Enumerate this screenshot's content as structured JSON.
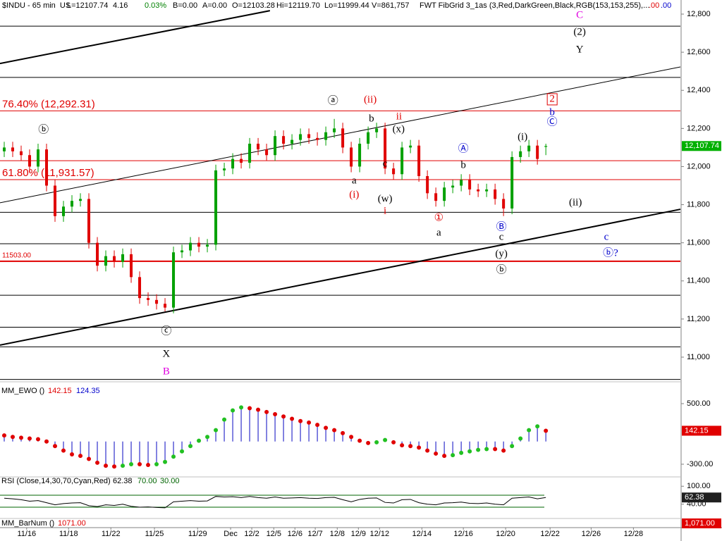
{
  "chart_data": [
    {
      "type": "candlestick",
      "header": [
        "$INDU - 65 min  US",
        "L=12107.74",
        "4.16",
        "0.03%",
        "B=0.00",
        "A=0.00",
        "O=12103.28",
        "Hi=12119.70",
        "Lo=11999.44",
        "V=861,757",
        "FWT FibGrid 3_1as (3,Red,DarkGreen,Black,RGB(153,153,255),...",
        ".00",
        ".00"
      ],
      "header_colors": [
        "#000000",
        "#000000",
        "#000000",
        "#008000",
        "#000000",
        "#000000",
        "#000000",
        "#000000",
        "#000000",
        "#000000",
        "#000000",
        "#e00000",
        "#0000cc"
      ],
      "x": [
        1,
        3,
        5,
        7,
        9,
        11,
        13,
        15,
        17,
        19,
        21,
        23,
        25,
        27,
        29,
        31,
        33,
        35,
        37,
        39,
        41,
        43,
        45,
        47,
        49,
        51,
        53,
        55,
        57,
        59,
        61,
        63,
        65,
        67,
        69,
        71,
        73,
        75,
        77,
        79,
        81,
        83,
        85,
        87,
        89,
        91,
        93,
        95,
        97,
        99,
        101,
        103,
        105,
        107,
        109,
        111,
        113,
        115,
        117,
        119,
        121,
        123,
        125,
        127,
        129
      ],
      "open": [
        12080,
        12100,
        12080,
        12060,
        12000,
        12090,
        11900,
        11740,
        11790,
        11820,
        11830,
        11600,
        11480,
        11530,
        11500,
        11540,
        11420,
        11310,
        11300,
        11280,
        11260,
        11550,
        11560,
        11600,
        11580,
        11590,
        11980,
        11990,
        12040,
        12020,
        12120,
        12090,
        12060,
        12160,
        12120,
        12140,
        12170,
        12150,
        12140,
        12180,
        12200,
        12100,
        12000,
        12120,
        12180,
        12200,
        11990,
        11960,
        12100,
        12110,
        11950,
        11860,
        11820,
        11890,
        11900,
        11930,
        11880,
        11870,
        11880,
        11830,
        11780,
        12050,
        12080,
        12110,
        12103.28
      ],
      "high": [
        12130,
        12130,
        12110,
        12090,
        12120,
        12120,
        11930,
        11820,
        11850,
        11860,
        11860,
        11630,
        11560,
        11560,
        11570,
        11570,
        11450,
        11340,
        11330,
        11310,
        11580,
        11590,
        11630,
        11630,
        11620,
        12010,
        12020,
        12070,
        12070,
        12150,
        12150,
        12120,
        12190,
        12190,
        12170,
        12200,
        12200,
        12180,
        12210,
        12250,
        12230,
        12130,
        12150,
        12210,
        12230,
        12230,
        12020,
        12130,
        12140,
        12140,
        11980,
        11890,
        11920,
        11930,
        11960,
        11960,
        11910,
        11910,
        11910,
        11860,
        12080,
        12110,
        12140,
        12140,
        12119.7
      ],
      "low": [
        12050,
        12050,
        12030,
        11970,
        11970,
        11870,
        11710,
        11710,
        11760,
        11790,
        11570,
        11450,
        11450,
        11470,
        11470,
        11390,
        11280,
        11270,
        11250,
        11240,
        11230,
        11520,
        11530,
        11550,
        11550,
        11560,
        11950,
        11960,
        11990,
        11990,
        12060,
        12030,
        12030,
        12090,
        12090,
        12110,
        12120,
        12110,
        12110,
        12150,
        12070,
        11970,
        11970,
        12090,
        12150,
        11960,
        11930,
        11930,
        12070,
        11920,
        11830,
        11790,
        11790,
        11860,
        11870,
        11850,
        11840,
        11840,
        11800,
        11740,
        11750,
        12020,
        12050,
        12010,
        12060
      ],
      "close": [
        12100,
        12080,
        12060,
        12000,
        12090,
        11900,
        11740,
        11790,
        11820,
        11830,
        11600,
        11480,
        11530,
        11500,
        11540,
        11420,
        11310,
        11300,
        11280,
        11260,
        11550,
        11560,
        11600,
        11580,
        11590,
        11980,
        11990,
        12040,
        12020,
        12120,
        12090,
        12060,
        12160,
        12120,
        12140,
        12170,
        12150,
        12140,
        12180,
        12200,
        12100,
        12000,
        12120,
        12180,
        12200,
        11990,
        11960,
        12100,
        12110,
        11950,
        11860,
        11820,
        11890,
        11900,
        11930,
        11880,
        11870,
        11880,
        11830,
        11780,
        12050,
        12080,
        12110,
        12040,
        12107.74
      ],
      "up_color": "#00a000",
      "down_color": "#e00000",
      "last_label": "12,107.74",
      "last_color": "#00b000",
      "xlim": [
        0,
        160.8
      ],
      "xticks": [
        {
          "value": 6.3,
          "label": "11/16"
        },
        {
          "value": 16.2,
          "label": "11/18"
        },
        {
          "value": 26.2,
          "label": "11/22"
        },
        {
          "value": 36.5,
          "label": "11/25"
        },
        {
          "value": 46.7,
          "label": "11/29"
        },
        {
          "value": 54.5,
          "label": "Dec"
        },
        {
          "value": 59.5,
          "label": "12/2"
        },
        {
          "value": 64.7,
          "label": "12/5"
        },
        {
          "value": 69.7,
          "label": "12/6"
        },
        {
          "value": 74.5,
          "label": "12/7"
        },
        {
          "value": 79.7,
          "label": "12/8"
        },
        {
          "value": 84.7,
          "label": "12/9"
        },
        {
          "value": 89.7,
          "label": "12/12"
        },
        {
          "value": 99.7,
          "label": "12/14"
        },
        {
          "value": 109.5,
          "label": "12/16"
        },
        {
          "value": 119.5,
          "label": "12/20"
        },
        {
          "value": 130,
          "label": "12/22"
        },
        {
          "value": 139.7,
          "label": "12/26"
        },
        {
          "value": 149.7,
          "label": "12/28"
        }
      ],
      "ylim": [
        10878,
        12874
      ],
      "yticks": [
        {
          "value": 11000,
          "label": "11,000"
        },
        {
          "value": 11200,
          "label": "11,200"
        },
        {
          "value": 11400,
          "label": "11,400"
        },
        {
          "value": 11600,
          "label": "11,600"
        },
        {
          "value": 11800,
          "label": "11,800"
        },
        {
          "value": 12000,
          "label": "12,000"
        },
        {
          "value": 12200,
          "label": "12,200"
        },
        {
          "value": 12400,
          "label": "12,400"
        },
        {
          "value": 12600,
          "label": "12,600"
        },
        {
          "value": 12800,
          "label": "12,800"
        }
      ],
      "hlines": [
        {
          "value": 12737,
          "color": "#000000",
          "width": 1
        },
        {
          "value": 12468,
          "color": "#000000",
          "width": 1
        },
        {
          "value": 12292.31,
          "color": "#e00000",
          "width": 1,
          "label": "76.40% (12,292.31)"
        },
        {
          "value": 12031,
          "color": "#e00000",
          "width": 1
        },
        {
          "value": 11931.57,
          "color": "#e00000",
          "width": 1,
          "label": "61.80% (11,931.57)"
        },
        {
          "value": 11760,
          "color": "#000000",
          "width": 1
        },
        {
          "value": 11595,
          "color": "#000000",
          "width": 1
        },
        {
          "value": 11503,
          "color": "#e00000",
          "width": 2,
          "label": "11503.00"
        },
        {
          "value": 11325,
          "color": "#000000",
          "width": 1
        },
        {
          "value": 11157,
          "color": "#000000",
          "width": 1
        },
        {
          "value": 11054,
          "color": "#000000",
          "width": 1
        },
        {
          "value": 10883,
          "color": "#000000",
          "width": 1
        }
      ],
      "trendlines": [
        {
          "x1": 0,
          "y1": 12541,
          "x2": 63.8,
          "y2": 12818,
          "color": "#000000",
          "width": 2
        },
        {
          "x1": 0,
          "y1": 11063,
          "x2": 160.8,
          "y2": 11776,
          "color": "#000000",
          "width": 2
        },
        {
          "x1": 0,
          "y1": 11810,
          "x2": 160.8,
          "y2": 12523,
          "color": "#000000",
          "width": 1
        }
      ],
      "annotations": [
        {
          "text": "ⓑ",
          "x": 10.3,
          "y": 12190,
          "color": "#000000"
        },
        {
          "text": "ⓐ",
          "x": 78.7,
          "y": 12342,
          "color": "#000000"
        },
        {
          "text": "(ii)",
          "x": 87.5,
          "y": 12349,
          "color": "#e00000"
        },
        {
          "text": "b",
          "x": 87.8,
          "y": 12249,
          "color": "#000000"
        },
        {
          "text": "ii",
          "x": 94.3,
          "y": 12260,
          "color": "#e00000"
        },
        {
          "text": "(x)",
          "x": 94.2,
          "y": 12194,
          "color": "#000000"
        },
        {
          "text": "c",
          "x": 91,
          "y": 12013,
          "color": "#000000"
        },
        {
          "text": "a",
          "x": 83.7,
          "y": 11924,
          "color": "#000000"
        },
        {
          "text": "(i)",
          "x": 83.7,
          "y": 11850,
          "color": "#e00000"
        },
        {
          "text": "(w)",
          "x": 91,
          "y": 11828,
          "color": "#000000"
        },
        {
          "text": "i",
          "x": 91,
          "y": 11765,
          "color": "#e00000"
        },
        {
          "text": "①",
          "x": 103.7,
          "y": 11728,
          "color": "#e00000"
        },
        {
          "text": "a",
          "x": 103.7,
          "y": 11651,
          "color": "#000000"
        },
        {
          "text": "Ⓐ",
          "x": 109.5,
          "y": 12090,
          "color": "#0000cc"
        },
        {
          "text": "b",
          "x": 109.5,
          "y": 12005,
          "color": "#000000"
        },
        {
          "text": "(i)",
          "x": 123.5,
          "y": 12153,
          "color": "#000000"
        },
        {
          "text": "Ⓑ",
          "x": 118.5,
          "y": 11680,
          "color": "#0000cc"
        },
        {
          "text": "c",
          "x": 118.5,
          "y": 11629,
          "color": "#000000"
        },
        {
          "text": "(y)",
          "x": 118.5,
          "y": 11540,
          "color": "#000000"
        },
        {
          "text": "ⓑ",
          "x": 118.5,
          "y": 11455,
          "color": "#000000"
        },
        {
          "text": "ⓒ",
          "x": 39.3,
          "y": 11133,
          "color": "#000000"
        },
        {
          "text": "X",
          "x": 39.3,
          "y": 11015,
          "color": "#000000"
        },
        {
          "text": "B",
          "x": 39.3,
          "y": 10923,
          "color": "#e000e0"
        },
        {
          "text": "C",
          "x": 137,
          "y": 12793,
          "color": "#e000e0"
        },
        {
          "text": "(2)",
          "x": 137,
          "y": 12704,
          "color": "#000000"
        },
        {
          "text": "Y",
          "x": 137,
          "y": 12612,
          "color": "#000000"
        },
        {
          "text": "2",
          "x": 130.5,
          "y": 12353,
          "color": "#e00000",
          "boxed": true
        },
        {
          "text": "b",
          "x": 130.5,
          "y": 12283,
          "color": "#0000cc"
        },
        {
          "text": "Ⓒ",
          "x": 130.5,
          "y": 12231,
          "color": "#0000cc"
        },
        {
          "text": "(ii)",
          "x": 136,
          "y": 11810,
          "color": "#000000"
        },
        {
          "text": "c",
          "x": 143.3,
          "y": 11629,
          "color": "#0000cc"
        },
        {
          "text": "ⓑ?",
          "x": 144.3,
          "y": 11544,
          "color": "#0000cc"
        }
      ]
    },
    {
      "type": "bar",
      "title": "MM_EWO ()",
      "x": [
        1,
        3,
        5,
        7,
        9,
        11,
        13,
        15,
        17,
        19,
        21,
        23,
        25,
        27,
        29,
        31,
        33,
        35,
        37,
        39,
        41,
        43,
        45,
        47,
        49,
        51,
        53,
        55,
        57,
        59,
        61,
        63,
        65,
        67,
        69,
        71,
        73,
        75,
        77,
        79,
        81,
        83,
        85,
        87,
        89,
        91,
        93,
        95,
        97,
        99,
        101,
        103,
        105,
        107,
        109,
        111,
        113,
        115,
        117,
        119,
        121,
        123,
        125,
        127,
        129
      ],
      "values": [
        80,
        60,
        50,
        40,
        30,
        0,
        -60,
        -120,
        -170,
        -190,
        -230,
        -280,
        -320,
        -330,
        -320,
        -300,
        -300,
        -310,
        -300,
        -270,
        -200,
        -130,
        -60,
        10,
        60,
        150,
        290,
        410,
        450,
        440,
        420,
        390,
        360,
        330,
        300,
        270,
        250,
        220,
        180,
        150,
        110,
        60,
        10,
        -20,
        -10,
        20,
        -10,
        -50,
        -60,
        -80,
        -120,
        -160,
        -190,
        -180,
        -150,
        -130,
        -110,
        -100,
        -100,
        -120,
        -60,
        40,
        150,
        200,
        142.15
      ],
      "color": "#3030cc",
      "up_color": "#22c022",
      "down_color": "#e00000",
      "value_color": "#e00000",
      "signal": 124.35,
      "signal_color": "#0000cc",
      "ylim": [
        -449,
        621
      ],
      "yticks": [
        {
          "value": 500,
          "label": "500.00"
        },
        {
          "value": -300,
          "label": "-300.00"
        }
      ]
    },
    {
      "type": "line",
      "title": "RSI (Close,14,30,70,Cyan,Red)",
      "x": [
        1,
        3,
        5,
        7,
        9,
        11,
        13,
        15,
        17,
        19,
        21,
        23,
        25,
        27,
        29,
        31,
        33,
        35,
        37,
        39,
        41,
        43,
        45,
        47,
        49,
        51,
        53,
        55,
        57,
        59,
        61,
        63,
        65,
        67,
        69,
        71,
        73,
        75,
        77,
        79,
        81,
        83,
        85,
        87,
        89,
        91,
        93,
        95,
        97,
        99,
        101,
        103,
        105,
        107,
        109,
        111,
        113,
        115,
        117,
        119,
        121,
        123,
        125,
        127,
        129
      ],
      "values": [
        60,
        58,
        55,
        50,
        52,
        45,
        38,
        42,
        44,
        45,
        35,
        32,
        38,
        36,
        40,
        33,
        30,
        31,
        29,
        28,
        48,
        50,
        52,
        50,
        51,
        66,
        64,
        65,
        62,
        66,
        62,
        60,
        64,
        60,
        61,
        62,
        60,
        59,
        62,
        63,
        55,
        48,
        56,
        60,
        61,
        46,
        44,
        55,
        56,
        45,
        40,
        38,
        44,
        45,
        47,
        43,
        42,
        44,
        40,
        38,
        60,
        62,
        64,
        58,
        62.38
      ],
      "color": "#000000",
      "level_color": "#006400",
      "box_color": "#202020",
      "levels": [
        {
          "value": 70,
          "label": "70.00"
        },
        {
          "value": 30,
          "label": "30.00"
        }
      ],
      "ylim": [
        -5.3,
        124.1
      ],
      "yticks": [
        {
          "value": 100,
          "label": "100.00"
        },
        {
          "value": 40,
          "label": "40.00"
        }
      ]
    },
    {
      "type": "indicator",
      "title": "MM_BarNum ()",
      "readout": {
        "value": 1071,
        "label": "1071.00"
      },
      "axis_label": "1,071.00",
      "color": "#e00000"
    }
  ]
}
